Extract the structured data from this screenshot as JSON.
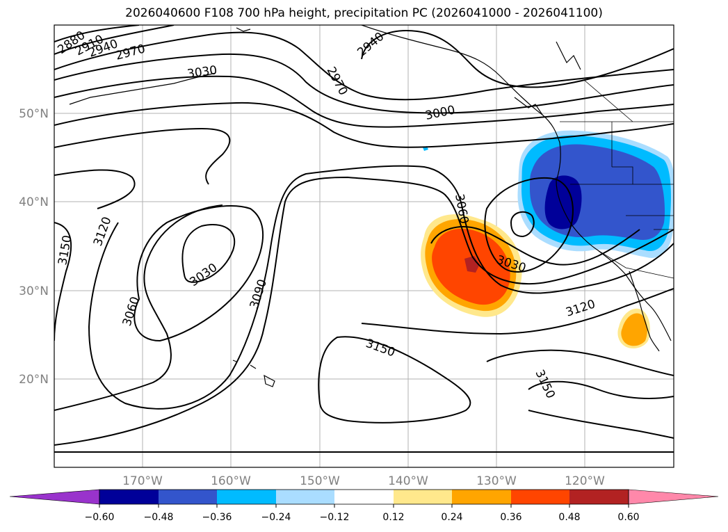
{
  "title": "2026040600 F108 700 hPa height, precipitation PC (2026041000 - 2026041100)",
  "lat_labels": [
    "50°N",
    "40°N",
    "30°N",
    "20°N"
  ],
  "lon_labels": [
    "170°W",
    "160°W",
    "150°W",
    "140°W",
    "130°W",
    "120°W"
  ],
  "contour_labels": [
    "2880",
    "2910",
    "2940",
    "2970",
    "3030",
    "2940",
    "2970",
    "3000",
    "3060",
    "3030",
    "3120",
    "3150",
    "3120",
    "3030",
    "3090",
    "3060",
    "3150",
    "3150"
  ],
  "colorbar": {
    "colors": [
      "#9933cc",
      "#000099",
      "#3355cc",
      "#00bbff",
      "#aaddff",
      "#ffffff",
      "#ffe88c",
      "#ffa500",
      "#ff4500",
      "#b22222",
      "#ff88aa"
    ],
    "ticks": [
      "−0.60",
      "−0.48",
      "−0.36",
      "−0.24",
      "−0.12",
      "0.12",
      "0.24",
      "0.36",
      "0.48",
      "0.60"
    ]
  }
}
